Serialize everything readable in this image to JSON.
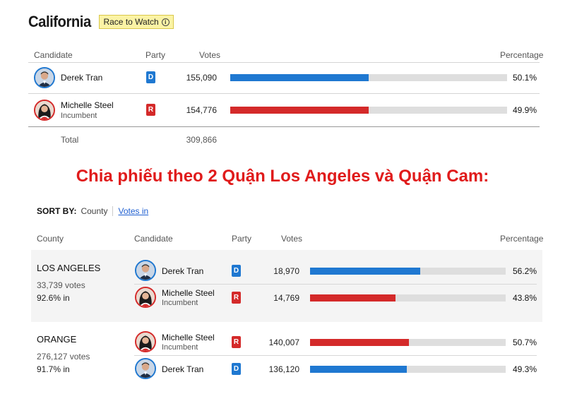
{
  "state": {
    "title": "California",
    "badge": "Race to Watch",
    "info_glyph": "i"
  },
  "statewide": {
    "headers": {
      "candidate": "Candidate",
      "party": "Party",
      "votes": "Votes",
      "percentage": "Percentage"
    },
    "rows": [
      {
        "name": "Derek Tran",
        "sub": "",
        "party": "D",
        "votes": "155,090",
        "pct": "50.1%",
        "share": 50.1
      },
      {
        "name": "Michelle Steel",
        "sub": "Incumbent",
        "party": "R",
        "votes": "154,776",
        "pct": "49.9%",
        "share": 49.9
      }
    ],
    "total_label": "Total",
    "total_votes": "309,866"
  },
  "banner": "Chia phiếu theo 2 Quận Los Angeles và Quận Cam:",
  "sort": {
    "label": "SORT BY:",
    "option_active": "County",
    "option_link": "Votes in"
  },
  "county_table": {
    "headers": {
      "county": "County",
      "candidate": "Candidate",
      "party": "Party",
      "votes": "Votes",
      "percentage": "Percentage"
    },
    "counties": [
      {
        "name": "LOS ANGELES",
        "votes": "33,739 votes",
        "in": "92.6% in",
        "rows": [
          {
            "name": "Derek Tran",
            "sub": "",
            "party": "D",
            "votes": "18,970",
            "pct": "56.2%",
            "share": 56.2
          },
          {
            "name": "Michelle Steel",
            "sub": "Incumbent",
            "party": "R",
            "votes": "14,769",
            "pct": "43.8%",
            "share": 43.8
          }
        ]
      },
      {
        "name": "ORANGE",
        "votes": "276,127 votes",
        "in": "91.7% in",
        "rows": [
          {
            "name": "Michelle Steel",
            "sub": "Incumbent",
            "party": "R",
            "votes": "140,007",
            "pct": "50.7%",
            "share": 50.7
          },
          {
            "name": "Derek Tran",
            "sub": "",
            "party": "D",
            "votes": "136,120",
            "pct": "49.3%",
            "share": 49.3
          }
        ]
      }
    ]
  },
  "colors": {
    "dem": "#1f78d1",
    "rep": "#d42a2a",
    "banner": "#e01b1b",
    "badge_bg": "#fbf3a5"
  }
}
